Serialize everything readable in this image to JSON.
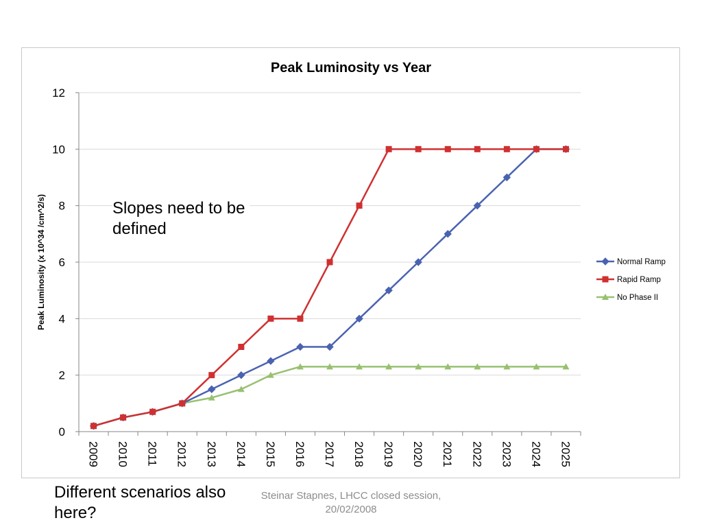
{
  "notes": {
    "slopes": "Slopes need to be defined",
    "scenarios": "Different scenarios also here?"
  },
  "footer": {
    "line1": "Steinar Stapnes, LHCC closed session,",
    "line2": "20/02/2008"
  },
  "chart_data": {
    "type": "line",
    "title": "Peak Luminosity vs Year",
    "xlabel": "",
    "ylabel": "Peak Luminosity (x 10^34 /cm^2/s)",
    "ylim": [
      0,
      12
    ],
    "yticks": [
      0,
      2,
      4,
      6,
      8,
      10,
      12
    ],
    "grid": "horizontal",
    "legend_position": "right",
    "categories": [
      "2009",
      "2010",
      "2011",
      "2012",
      "2013",
      "2014",
      "2015",
      "2016",
      "2017",
      "2018",
      "2019",
      "2020",
      "2021",
      "2022",
      "2023",
      "2024",
      "2025"
    ],
    "series": [
      {
        "name": "Normal Ramp",
        "color": "#4a63b0",
        "marker": "diamond",
        "values": [
          0.2,
          0.5,
          0.7,
          1.0,
          1.5,
          2.0,
          2.5,
          3.0,
          3.0,
          4.0,
          5.0,
          6.0,
          7.0,
          8.0,
          9.0,
          10.0,
          10.0
        ]
      },
      {
        "name": "Rapid Ramp",
        "color": "#d03030",
        "marker": "square",
        "values": [
          0.2,
          0.5,
          0.7,
          1.0,
          2.0,
          3.0,
          4.0,
          4.0,
          6.0,
          8.0,
          10.0,
          10.0,
          10.0,
          10.0,
          10.0,
          10.0,
          10.0
        ]
      },
      {
        "name": "No Phase II",
        "color": "#98c070",
        "marker": "triangle",
        "values": [
          0.2,
          0.5,
          0.7,
          1.0,
          1.2,
          1.5,
          2.0,
          2.3,
          2.3,
          2.3,
          2.3,
          2.3,
          2.3,
          2.3,
          2.3,
          2.3,
          2.3
        ]
      }
    ]
  }
}
